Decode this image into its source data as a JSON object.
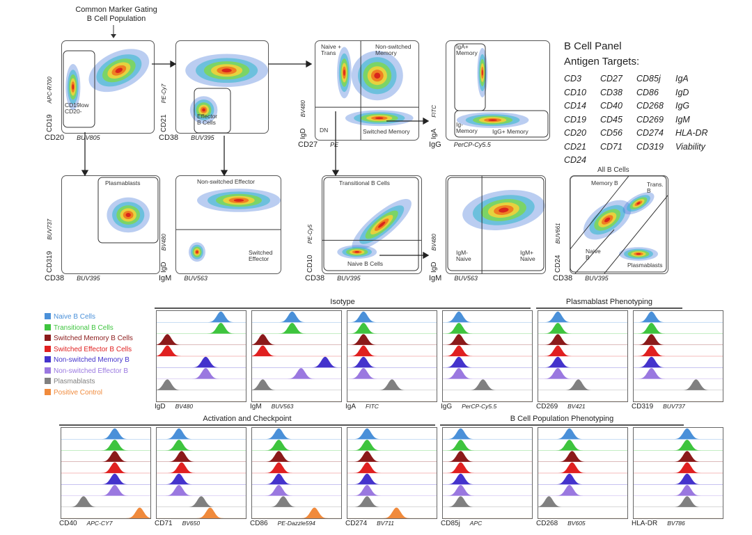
{
  "top_note": "Common Marker Gating\nB Cell Population",
  "panel": {
    "title": "B Cell Panel",
    "subtitle": "Antigen Targets:",
    "antigens": [
      [
        "CD3",
        "CD27",
        "CD85j",
        "IgA"
      ],
      [
        "CD10",
        "CD38",
        "CD86",
        "IgD"
      ],
      [
        "CD14",
        "CD40",
        "CD268",
        "IgG"
      ],
      [
        "CD19",
        "CD45",
        "CD269",
        "IgM"
      ],
      [
        "CD20",
        "CD56",
        "CD274",
        "HLA-DR"
      ],
      [
        "CD21",
        "CD71",
        "CD319",
        "Viability"
      ],
      [
        "CD24",
        "",
        "",
        ""
      ]
    ]
  },
  "scatter_plots": [
    {
      "id": "cd19-cd20",
      "y_marker": "CD19",
      "y_fluor": "APC-R700",
      "x_marker": "CD20",
      "x_fluor": "BUV805",
      "gates": [
        "CD19low\nCD20-"
      ]
    },
    {
      "id": "cd21-cd38",
      "y_marker": "CD21",
      "y_fluor": "PE-Cy7",
      "x_marker": "CD38",
      "x_fluor": "BUV395",
      "gates": [
        "Effector\nB Cells"
      ]
    },
    {
      "id": "igd-cd27",
      "y_marker": "IgD",
      "y_fluor": "BV480",
      "x_marker": "CD27",
      "x_fluor": "PE",
      "gates": [
        "Naive +\nTrans",
        "Non-switched\nMemory",
        "DN",
        "Switched Memory"
      ]
    },
    {
      "id": "iga-igg",
      "y_marker": "IgA",
      "y_fluor": "FITC",
      "x_marker": "IgG",
      "x_fluor": "PerCP-Cy5.5",
      "gates": [
        "IgA+\nMemory",
        "Ig-\nMemory",
        "IgG+ Memory"
      ]
    },
    {
      "id": "cd319-cd38",
      "y_marker": "CD319",
      "y_fluor": "BUV737",
      "x_marker": "CD38",
      "x_fluor": "BUV395",
      "gates": [
        "Plasmablasts"
      ]
    },
    {
      "id": "igd-igm",
      "y_marker": "IgD",
      "y_fluor": "BV480",
      "x_marker": "IgM",
      "x_fluor": "BUV563",
      "gates": [
        "Non-switched Effector",
        "Switched\nEffector"
      ]
    },
    {
      "id": "cd10-cd38",
      "y_marker": "CD10",
      "y_fluor": "PE-Cy5",
      "x_marker": "CD38",
      "x_fluor": "BUV395",
      "gates": [
        "Transitional B Cells",
        "Naive B Cells"
      ]
    },
    {
      "id": "igd-igm-2",
      "y_marker": "IgD",
      "y_fluor": "BV480",
      "x_marker": "IgM",
      "x_fluor": "BUV563",
      "gates": [
        "IgM-\nNaive",
        "IgM+\nNaive"
      ]
    },
    {
      "id": "cd24-cd38",
      "title": "All B Cells",
      "y_marker": "CD24",
      "y_fluor": "BUV661",
      "x_marker": "CD38",
      "x_fluor": "BUV395",
      "gates": [
        "Memory B",
        "Trans.\nB",
        "Naive\nB",
        "Plasmablasts"
      ]
    }
  ],
  "legend": [
    {
      "label": "Naive B Cells",
      "color": "#4a90d9"
    },
    {
      "label": "Transitional B Cells",
      "color": "#3ec43e"
    },
    {
      "label": "Switched Memory B Cells",
      "color": "#8b1a1a"
    },
    {
      "label": "Switched Effector B Cells",
      "color": "#e02020"
    },
    {
      "label": "Non-switched Memory B",
      "color": "#4433cc"
    },
    {
      "label": "Non-switched Effector B",
      "color": "#9a78e0"
    },
    {
      "label": "Plasmablasts",
      "color": "#808080"
    },
    {
      "label": "Positive Control",
      "color": "#f08a3c"
    }
  ],
  "sections": {
    "isotype": "Isotype",
    "plasmablast": "Plasmablast Phenotyping",
    "activation": "Activation and Checkpoint",
    "population": "B Cell Population Phenotyping"
  },
  "histograms": [
    {
      "id": "igd",
      "marker": "IgD",
      "fluor": "BV480",
      "peaks": [
        0.72,
        0.72,
        0.12,
        0.12,
        0.55,
        0.55,
        0.12,
        null
      ]
    },
    {
      "id": "igm",
      "marker": "IgM",
      "fluor": "BUV563",
      "peaks": [
        0.45,
        0.45,
        0.12,
        0.12,
        0.82,
        0.55,
        0.12,
        null
      ]
    },
    {
      "id": "iga",
      "marker": "IgA",
      "fluor": "FITC",
      "peaks": [
        0.18,
        0.18,
        0.18,
        0.18,
        0.18,
        0.18,
        0.5,
        null
      ]
    },
    {
      "id": "igg",
      "marker": "IgG",
      "fluor": "PerCP-Cy5.5",
      "peaks": [
        0.18,
        0.18,
        0.18,
        0.18,
        0.18,
        0.18,
        0.45,
        null
      ]
    },
    {
      "id": "cd269",
      "marker": "CD269",
      "fluor": "BV421",
      "peaks": [
        0.22,
        0.22,
        0.22,
        0.22,
        0.22,
        0.22,
        0.45,
        null
      ]
    },
    {
      "id": "cd319",
      "marker": "CD319",
      "fluor": "BUV737",
      "peaks": [
        0.2,
        0.2,
        0.2,
        0.2,
        0.2,
        0.2,
        0.7,
        null
      ]
    },
    {
      "id": "cd40",
      "marker": "CD40",
      "fluor": "APC-CY7",
      "peaks": [
        0.6,
        0.6,
        0.6,
        0.6,
        0.6,
        0.6,
        0.25,
        0.88
      ]
    },
    {
      "id": "cd71",
      "marker": "CD71",
      "fluor": "BV650",
      "peaks": [
        0.25,
        0.25,
        0.28,
        0.28,
        0.25,
        0.25,
        0.5,
        0.6
      ]
    },
    {
      "id": "cd86",
      "marker": "CD86",
      "fluor": "PE-Dazzle594",
      "peaks": [
        0.3,
        0.3,
        0.3,
        0.3,
        0.3,
        0.3,
        0.35,
        0.7
      ]
    },
    {
      "id": "cd274",
      "marker": "CD274",
      "fluor": "BV711",
      "peaks": [
        0.22,
        0.22,
        0.22,
        0.22,
        0.22,
        0.22,
        0.22,
        0.55
      ]
    },
    {
      "id": "cd85j",
      "marker": "CD85j",
      "fluor": "APC",
      "peaks": [
        0.2,
        0.2,
        0.2,
        0.2,
        0.2,
        0.2,
        0.2,
        null
      ]
    },
    {
      "id": "cd268",
      "marker": "CD268",
      "fluor": "BV605",
      "peaks": [
        0.35,
        0.35,
        0.38,
        0.38,
        0.35,
        0.35,
        0.12,
        null
      ]
    },
    {
      "id": "hla-dr",
      "marker": "HLA-DR",
      "fluor": "BV786",
      "peaks": [
        0.6,
        0.6,
        0.6,
        0.6,
        0.6,
        0.6,
        0.6,
        null
      ]
    }
  ]
}
